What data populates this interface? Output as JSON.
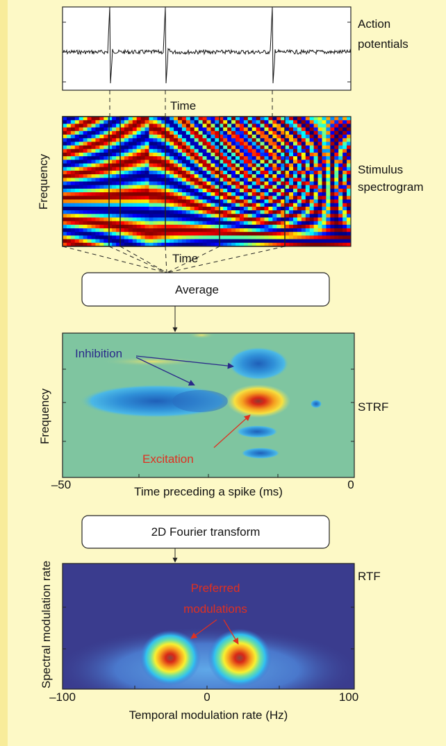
{
  "action_potentials": {
    "label_lines": [
      "Action",
      "potentials"
    ],
    "x_label": "Time"
  },
  "spectrogram": {
    "label_lines": [
      "Stimulus",
      "spectrogram"
    ],
    "x_label": "Time",
    "y_label": "Frequency"
  },
  "average_box": {
    "label": "Average"
  },
  "strf": {
    "label": "STRF",
    "y_label": "Frequency",
    "x_label": "Time preceding a spike (ms)",
    "x_tick_labels": [
      "–50",
      "0"
    ],
    "annotations": {
      "inhibition": "Inhibition",
      "excitation": "Excitation"
    }
  },
  "fourier_box": {
    "label": "2D Fourier transform"
  },
  "rtf": {
    "label": "RTF",
    "y_label": "Spectral modulation rate",
    "x_label": "Temporal modulation rate (Hz)",
    "x_tick_labels": [
      "–100",
      "0",
      "100"
    ],
    "annotation_lines": [
      "Preferred",
      "modulations"
    ]
  }
}
